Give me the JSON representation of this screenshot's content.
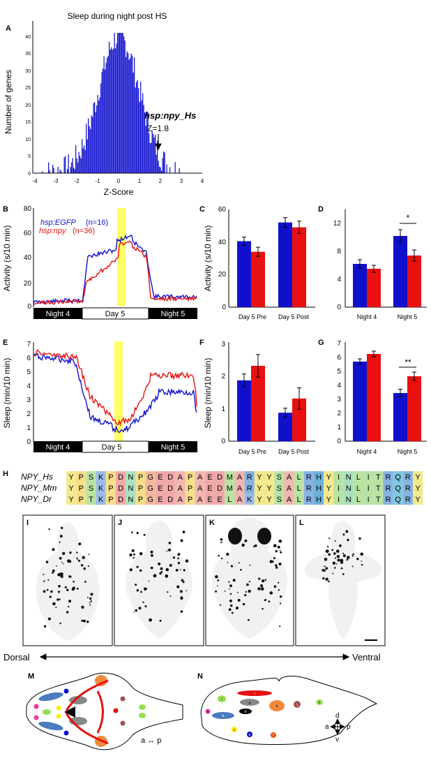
{
  "panel_letters": [
    "A",
    "B",
    "C",
    "D",
    "E",
    "F",
    "G",
    "H",
    "I",
    "J",
    "K",
    "L",
    "M",
    "N"
  ],
  "colors": {
    "egfp": "#1010cc",
    "npy": "#e81010",
    "hs_highlight": "#ffff66",
    "bar_black": "#000000"
  },
  "panel_A": {
    "title": "Sleep during night post HS",
    "ylabel": "Number of genes",
    "xlabel": "Z-Score",
    "x_ticks": [
      "-4",
      "-3",
      "-2",
      "-1",
      "0",
      "1",
      "2",
      "3",
      "4"
    ],
    "y_ticks": [
      "0",
      "5",
      "10",
      "15",
      "20",
      "25",
      "30",
      "35",
      "40"
    ],
    "annotation_gene": "hsp:npy_Hs",
    "annotation_z": "Z=1.8"
  },
  "panel_B": {
    "ylabel": "Activity (s/10 min)",
    "y_ticks": [
      "0",
      "20",
      "40",
      "60",
      "80"
    ],
    "legend": [
      {
        "label": "hsp:EGFP",
        "n": "(n=16)"
      },
      {
        "label": "hsp:npy",
        "n": "(n=36)"
      }
    ],
    "timeline": [
      "Night 4",
      "Day 5",
      "Night 5"
    ]
  },
  "panel_E": {
    "ylabel": "Sleep (min/10 min)",
    "y_ticks": [
      "0",
      "1",
      "2",
      "3",
      "4",
      "5",
      "6",
      "7"
    ],
    "timeline": [
      "Night 4",
      "Day 5",
      "Night 5"
    ]
  },
  "panel_C": {
    "ylabel": "Activity (s/10 min)",
    "y_ticks": [
      "0",
      "20",
      "40",
      "60"
    ],
    "categories": [
      "Day 5 Pre",
      "Day 5 Post"
    ]
  },
  "panel_D": {
    "y_ticks": [
      "0",
      "4",
      "8",
      "12"
    ],
    "categories": [
      "Night 4",
      "Night 5"
    ],
    "sig": "*"
  },
  "panel_F": {
    "ylabel": "Sleep (min/10 min)",
    "y_ticks": [
      "0",
      "1",
      "2",
      "3"
    ],
    "categories": [
      "Day 5 Pre",
      "Day 5 Post"
    ]
  },
  "panel_G": {
    "y_ticks": [
      "0",
      "1",
      "2",
      "3",
      "4",
      "5",
      "6",
      "7"
    ],
    "categories": [
      "Night 4",
      "Night 5"
    ],
    "sig": "**"
  },
  "chart_data": [
    {
      "panel": "C",
      "type": "bar",
      "categories": [
        "Day 5 Pre",
        "Day 5 Post"
      ],
      "ylabel": "Activity (s/10 min)",
      "ylim": [
        0,
        60
      ],
      "series": [
        {
          "name": "hsp:EGFP",
          "values": [
            40.5,
            52
          ],
          "err": [
            2.5,
            3
          ]
        },
        {
          "name": "hsp:npy",
          "values": [
            34,
            49
          ],
          "err": [
            2.8,
            3.8
          ]
        }
      ]
    },
    {
      "panel": "D",
      "type": "bar",
      "categories": [
        "Night 4",
        "Night 5"
      ],
      "ylim": [
        0,
        14
      ],
      "series": [
        {
          "name": "hsp:EGFP",
          "values": [
            6.2,
            10.2
          ],
          "err": [
            0.6,
            0.9
          ]
        },
        {
          "name": "hsp:npy",
          "values": [
            5.5,
            7.4
          ],
          "err": [
            0.5,
            0.8
          ]
        }
      ]
    },
    {
      "panel": "F",
      "type": "bar",
      "categories": [
        "Day 5 Pre",
        "Day 5 Post"
      ],
      "ylabel": "Sleep (min/10 min)",
      "ylim": [
        0,
        3
      ],
      "series": [
        {
          "name": "hsp:EGFP",
          "values": [
            1.88,
            0.88
          ],
          "err": [
            0.2,
            0.14
          ]
        },
        {
          "name": "hsp:npy",
          "values": [
            2.33,
            1.32
          ],
          "err": [
            0.35,
            0.33
          ]
        }
      ]
    },
    {
      "panel": "G",
      "type": "bar",
      "categories": [
        "Night 4",
        "Night 5"
      ],
      "ylim": [
        0,
        7
      ],
      "series": [
        {
          "name": "hsp:EGFP",
          "values": [
            5.7,
            3.45
          ],
          "err": [
            0.2,
            0.27
          ]
        },
        {
          "name": "hsp:npy",
          "values": [
            6.25,
            4.65
          ],
          "err": [
            0.2,
            0.3
          ]
        }
      ]
    }
  ],
  "panel_H": {
    "rows": [
      {
        "name": "NPY_Hs",
        "seq": "YPSKPDNPGEDAPAEDMARYYSALRHYINLITRQRY"
      },
      {
        "name": "NPY_Mm",
        "seq": "YPSKPDNPGEDAPAEDMARYYSALRHYINLITRQRY"
      },
      {
        "name": "NPY_Dr",
        "seq": "YPTKPDNPGEDAPAEELAKYYSALRHYINLITRQRY"
      }
    ]
  },
  "axis_labels": {
    "dorsal": "Dorsal",
    "ventral": "Ventral"
  },
  "panel_M": {
    "orientation": "a ↔ p"
  },
  "panel_N": {
    "dots": [
      "a",
      "b",
      "c",
      "d",
      "e",
      "f",
      "g",
      "h",
      "i",
      "j",
      "k",
      "l"
    ],
    "d": "d",
    "v": "v",
    "a": "a",
    "p": "p"
  }
}
